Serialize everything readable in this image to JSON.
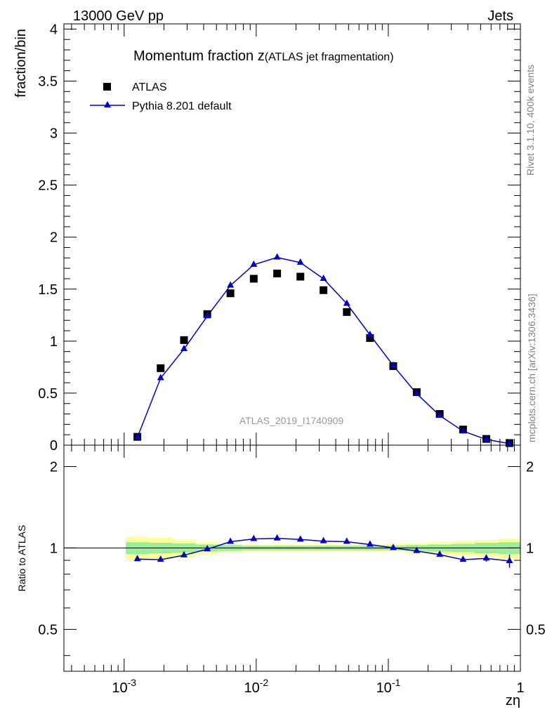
{
  "header": {
    "energy_label": "13000 GeV pp",
    "process_label": "Jets"
  },
  "side_labels": {
    "rivet": "Rivet 3.1.10,  400k events",
    "mcplots": "mcplots.cern.ch [arXiv:1306.3436]"
  },
  "colors": {
    "data": "#000000",
    "mc": "#0000cc",
    "band_inner": "#99ee99",
    "band_outer": "#ffff99",
    "watermark": "#999999",
    "side_text": "#808080"
  },
  "chart_data": [
    {
      "type": "scatter",
      "panel": "main",
      "title": "Momentum fraction z",
      "title_suffix": "(ATLAS jet fragmentation)",
      "ylabel": "fraction/bin",
      "xlabel": "zη",
      "x_scale": "log",
      "xlim": [
        0.00035,
        1.0
      ],
      "ylim": [
        0,
        4.05
      ],
      "x_tick_labels": [
        "10^-3",
        "10^-2",
        "10^-1",
        "1"
      ],
      "y_tick_labels": [
        "0",
        "0.5",
        "1",
        "1.5",
        "2",
        "2.5",
        "3",
        "3.5",
        "4"
      ],
      "legend_position": "top-left",
      "watermark": "ATLAS_2019_I1740909",
      "x": [
        0.00126,
        0.00189,
        0.00284,
        0.00426,
        0.00638,
        0.00958,
        0.0144,
        0.0216,
        0.0323,
        0.0485,
        0.0727,
        0.109,
        0.164,
        0.245,
        0.368,
        0.552,
        0.827
      ],
      "series": [
        {
          "name": "ATLAS",
          "marker": "square",
          "values": [
            0.08,
            0.74,
            1.01,
            1.26,
            1.46,
            1.6,
            1.65,
            1.62,
            1.49,
            1.28,
            1.03,
            0.76,
            0.51,
            0.3,
            0.15,
            0.06,
            0.02
          ]
        },
        {
          "name": "Pythia 8.201 default",
          "marker": "triangle",
          "values": [
            0.075,
            0.645,
            0.925,
            1.24,
            1.535,
            1.735,
            1.805,
            1.755,
            1.6,
            1.36,
            1.06,
            0.765,
            0.495,
            0.285,
            0.135,
            0.055,
            0.015
          ]
        }
      ]
    },
    {
      "type": "line",
      "panel": "ratio",
      "ylabel": "Ratio to ATLAS",
      "x_scale": "log",
      "xlim": [
        0.00035,
        1.0
      ],
      "ylim": [
        0.35,
        2.4
      ],
      "y_tick_labels": [
        "0.5",
        "1",
        "2"
      ],
      "x": [
        0.00126,
        0.00189,
        0.00284,
        0.00426,
        0.00638,
        0.00958,
        0.0144,
        0.0216,
        0.0323,
        0.0485,
        0.0727,
        0.109,
        0.164,
        0.245,
        0.368,
        0.552,
        0.827
      ],
      "series": [
        {
          "name": "Pythia 8.201 default",
          "values": [
            0.91,
            0.905,
            0.94,
            0.99,
            1.055,
            1.08,
            1.085,
            1.075,
            1.06,
            1.055,
            1.03,
            1.0,
            0.975,
            0.945,
            0.905,
            0.915,
            0.895
          ],
          "errors": [
            0.01,
            0.01,
            0.008,
            0.006,
            0.005,
            0.005,
            0.005,
            0.005,
            0.005,
            0.005,
            0.006,
            0.006,
            0.008,
            0.01,
            0.015,
            0.025,
            0.05
          ]
        }
      ],
      "uncertainty_bands": {
        "x_edges": [
          0.00103,
          0.00155,
          0.00232,
          0.00348,
          0.00522,
          0.00783,
          0.01175,
          0.0176,
          0.0264,
          0.0397,
          0.0595,
          0.0893,
          0.134,
          0.201,
          0.301,
          0.452,
          0.678,
          1.0
        ],
        "inner": [
          0.05,
          0.045,
          0.04,
          0.03,
          0.025,
          0.02,
          0.02,
          0.02,
          0.02,
          0.02,
          0.02,
          0.02,
          0.025,
          0.03,
          0.035,
          0.045,
          0.05
        ],
        "outer": [
          0.1,
          0.09,
          0.075,
          0.05,
          0.035,
          0.03,
          0.028,
          0.028,
          0.028,
          0.028,
          0.03,
          0.035,
          0.04,
          0.05,
          0.06,
          0.07,
          0.085
        ]
      }
    }
  ]
}
